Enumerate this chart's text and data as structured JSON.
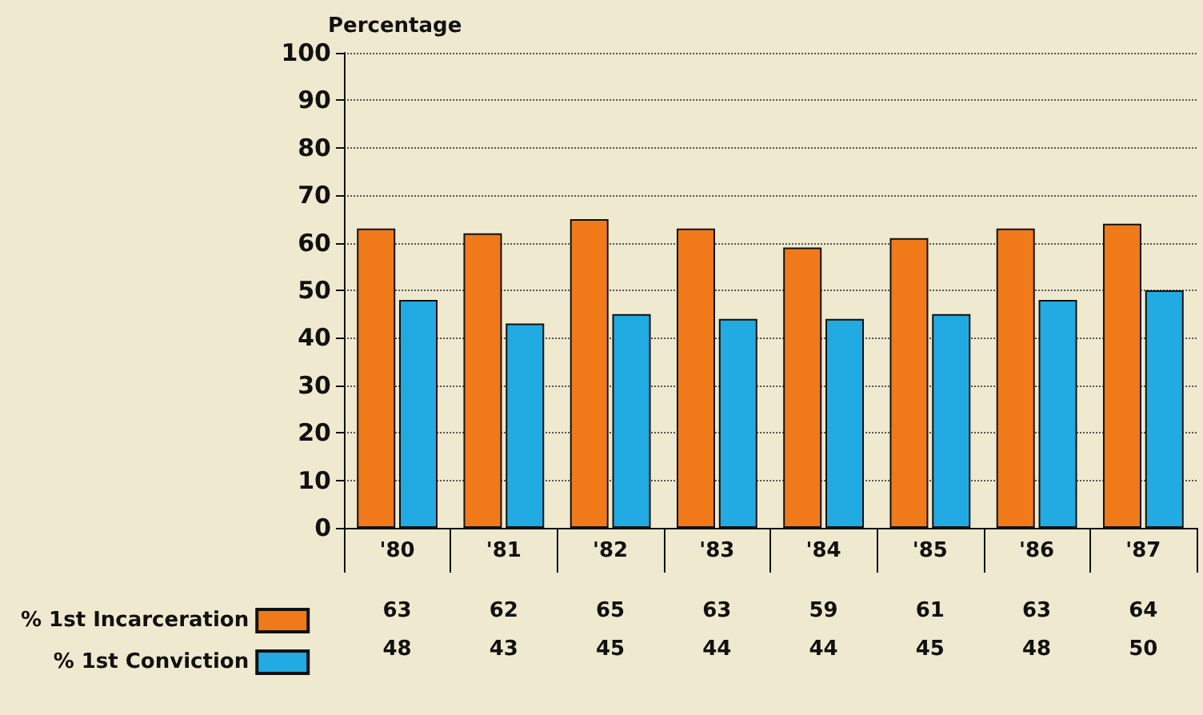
{
  "chart_data": {
    "type": "bar",
    "ylabel": "Percentage",
    "categories": [
      "'80",
      "'81",
      "'82",
      "'83",
      "'84",
      "'85",
      "'86",
      "'87"
    ],
    "series": [
      {
        "name": "% 1st Incarceration",
        "color": "#f07a1a",
        "values": [
          63,
          62,
          65,
          63,
          59,
          61,
          63,
          64
        ]
      },
      {
        "name": "% 1st Conviction",
        "color": "#22aae2",
        "values": [
          48,
          43,
          45,
          44,
          44,
          45,
          48,
          50
        ]
      }
    ],
    "ylim": [
      0,
      100
    ],
    "yticks": [
      0,
      10,
      20,
      30,
      40,
      50,
      60,
      70,
      80,
      90,
      100
    ],
    "grid": "y",
    "legend": "bottom left",
    "data_labels": true
  }
}
